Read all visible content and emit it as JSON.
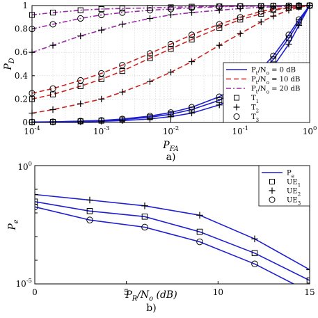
{
  "chart_data": [
    {
      "type": "line",
      "panel_caption": "a)",
      "xlabel": "P_FA",
      "ylabel": "P_D",
      "x_scale": "log",
      "xlim": [
        0.0001,
        1
      ],
      "ylim": [
        0,
        1
      ],
      "x_ticks": [
        "10^-4",
        "10^-3",
        "10^-2",
        "10^-1",
        "10^0"
      ],
      "y_ticks": [
        "0",
        "0.2",
        "0.4",
        "0.6",
        "0.8",
        "1"
      ],
      "grid": true,
      "legend_position": "bottom-right",
      "legend": [
        {
          "label": "P_t/N_o = 0 dB",
          "style": "solid",
          "color": "#1f1fd0"
        },
        {
          "label": "P_t/N_o = 10 dB",
          "style": "dashed",
          "color": "#cc2222"
        },
        {
          "label": "P_t/N_o = 20 dB",
          "style": "dashdot",
          "color": "#9a2aa8"
        },
        {
          "label": "T_1",
          "marker": "square"
        },
        {
          "label": "T_2",
          "marker": "plus"
        },
        {
          "label": "T_3",
          "marker": "circle"
        }
      ],
      "x": [
        0.0001,
        0.0002,
        0.0005,
        0.001,
        0.002,
        0.005,
        0.01,
        0.02,
        0.05,
        0.1,
        0.2,
        0.3,
        0.5,
        0.7,
        1.0
      ],
      "series": [
        {
          "snr": "20 dB",
          "marker": "square",
          "values": [
            0.92,
            0.94,
            0.96,
            0.97,
            0.975,
            0.98,
            0.985,
            0.99,
            0.993,
            0.995,
            0.997,
            0.998,
            0.999,
            1.0,
            1.0
          ]
        },
        {
          "snr": "20 dB",
          "marker": "plus",
          "values": [
            0.6,
            0.66,
            0.74,
            0.79,
            0.84,
            0.89,
            0.92,
            0.94,
            0.96,
            0.975,
            0.985,
            0.99,
            0.995,
            0.998,
            1.0
          ]
        },
        {
          "snr": "20 dB",
          "marker": "circle",
          "values": [
            0.8,
            0.84,
            0.89,
            0.92,
            0.94,
            0.96,
            0.97,
            0.98,
            0.99,
            0.993,
            0.996,
            0.998,
            0.999,
            1.0,
            1.0
          ]
        },
        {
          "snr": "10 dB",
          "marker": "square",
          "values": [
            0.2,
            0.24,
            0.31,
            0.37,
            0.44,
            0.55,
            0.63,
            0.71,
            0.81,
            0.88,
            0.93,
            0.96,
            0.98,
            0.99,
            1.0
          ]
        },
        {
          "snr": "10 dB",
          "marker": "plus",
          "values": [
            0.08,
            0.11,
            0.16,
            0.2,
            0.26,
            0.35,
            0.43,
            0.52,
            0.66,
            0.76,
            0.86,
            0.91,
            0.96,
            0.985,
            1.0
          ]
        },
        {
          "snr": "10 dB",
          "marker": "circle",
          "values": [
            0.25,
            0.29,
            0.36,
            0.42,
            0.49,
            0.59,
            0.67,
            0.75,
            0.84,
            0.9,
            0.95,
            0.97,
            0.985,
            0.995,
            1.0
          ]
        },
        {
          "snr": "0 dB",
          "marker": "square",
          "values": [
            0.003,
            0.005,
            0.01,
            0.015,
            0.025,
            0.045,
            0.07,
            0.11,
            0.19,
            0.29,
            0.43,
            0.54,
            0.72,
            0.86,
            1.0
          ]
        },
        {
          "snr": "0 dB",
          "marker": "plus",
          "values": [
            0.002,
            0.003,
            0.006,
            0.01,
            0.016,
            0.03,
            0.05,
            0.08,
            0.15,
            0.24,
            0.37,
            0.48,
            0.67,
            0.83,
            1.0
          ]
        },
        {
          "snr": "0 dB",
          "marker": "circle",
          "values": [
            0.004,
            0.006,
            0.012,
            0.018,
            0.03,
            0.055,
            0.085,
            0.13,
            0.22,
            0.32,
            0.46,
            0.57,
            0.75,
            0.88,
            1.0
          ]
        }
      ]
    },
    {
      "type": "line",
      "panel_caption": "b)",
      "xlabel": "P_R/N_o (dB)",
      "ylabel": "P_e",
      "y_scale": "log",
      "xlim": [
        0,
        15
      ],
      "ylim": [
        1e-05,
        1
      ],
      "x_ticks": [
        "0",
        "5",
        "10",
        "15"
      ],
      "y_ticks": [
        "10^0",
        "10^-5"
      ],
      "grid": false,
      "legend_position": "top-right",
      "legend": [
        {
          "label": "P_e",
          "style": "solid",
          "color": "#1f1fd0"
        },
        {
          "label": "UE_1",
          "marker": "square"
        },
        {
          "label": "UE_2",
          "marker": "plus"
        },
        {
          "label": "UE_3",
          "marker": "circle"
        }
      ],
      "x": [
        0,
        3,
        6,
        9,
        12,
        15
      ],
      "series": [
        {
          "marker": "plus",
          "values": [
            0.06,
            0.035,
            0.02,
            0.008,
            0.0008,
            4e-05
          ]
        },
        {
          "marker": "square",
          "values": [
            0.03,
            0.012,
            0.007,
            0.0016,
            0.0002,
            1.4e-05
          ]
        },
        {
          "marker": "circle",
          "values": [
            0.018,
            0.005,
            0.0025,
            0.0006,
            7e-05,
            4.5e-06
          ]
        }
      ]
    }
  ]
}
